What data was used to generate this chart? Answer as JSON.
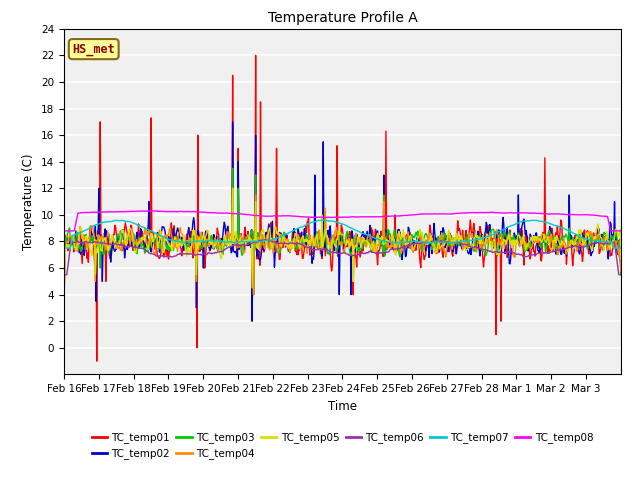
{
  "title": "Temperature Profile A",
  "xlabel": "Time",
  "ylabel": "Temperature (C)",
  "ylim": [
    -2,
    24
  ],
  "yticks": [
    0,
    2,
    4,
    6,
    8,
    10,
    12,
    14,
    16,
    18,
    20,
    22,
    24
  ],
  "annotation_text": "HS_met",
  "annotation_color": "#8B0000",
  "annotation_bg": "#FFFF99",
  "annotation_border": "#8B6914",
  "bg_color": "#F0F0F0",
  "series_colors": {
    "TC_temp01": "#FF0000",
    "TC_temp02": "#0000CC",
    "TC_temp03": "#00CC00",
    "TC_temp04": "#FF8C00",
    "TC_temp05": "#DDDD00",
    "TC_temp06": "#9933AA",
    "TC_temp07": "#00CCCC",
    "TC_temp08": "#FF00FF"
  },
  "x_labels": [
    "Feb 16",
    "Feb 17",
    "Feb 18",
    "Feb 19",
    "Feb 20",
    "Feb 21",
    "Feb 22",
    "Feb 23",
    "Feb 24",
    "Feb 25",
    "Feb 26",
    "Feb 27",
    "Feb 28",
    "Mar 1",
    "Mar 2",
    "Mar 3"
  ],
  "n_points": 800
}
